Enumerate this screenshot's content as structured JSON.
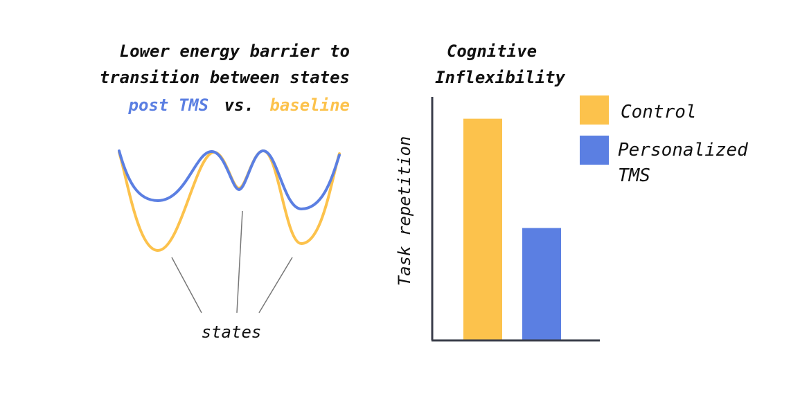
{
  "colors": {
    "blue": "#5b7fe2",
    "yellow": "#fcc24c",
    "axis": "#3a3d4a",
    "pointer": "#777777"
  },
  "diagram": {
    "title_line1": "Lower energy barrier to",
    "title_line2": "transition between states",
    "post_tms": "post TMS",
    "vs": "vs.",
    "baseline": "baseline",
    "states_label": "states"
  },
  "chart_data": {
    "type": "bar",
    "title": [
      "Cognitive",
      "Inflexibility"
    ],
    "ylabel": "Task repetition",
    "xlabel": "",
    "series": [
      {
        "name": "Control",
        "value": 0.91,
        "color": "#fcc24c"
      },
      {
        "name": "Personalized TMS",
        "value": 0.46,
        "color": "#5b7fe2"
      }
    ],
    "legend": [
      "Control",
      "Personalized",
      "TMS"
    ],
    "ylim": [
      0,
      1
    ]
  }
}
